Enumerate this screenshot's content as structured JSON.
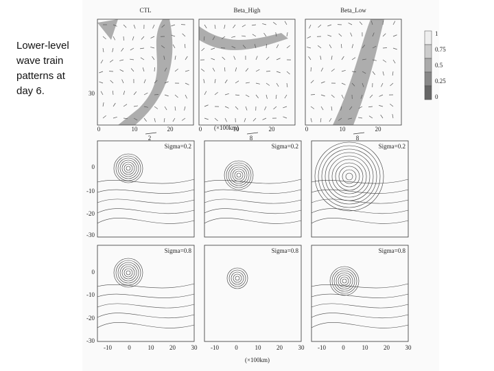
{
  "caption": "Lower-level wave train patterns at day 6.",
  "figure": {
    "top_row": {
      "titles": [
        "CTL",
        "Beta_High",
        "Beta_Low"
      ],
      "x_ticks": [
        "0",
        "10",
        "20"
      ],
      "y_ticks": [
        "30"
      ],
      "x_unit": "(×100km)",
      "vector_scale_labels": [
        "2",
        "8",
        "8"
      ]
    },
    "colorbar_labels": [
      "1",
      "0.75",
      "0.5",
      "0.25",
      "0"
    ],
    "middle_row": {
      "sigma_labels": [
        "Sigma=0.2",
        "Sigma=0.2",
        "Sigma=0.2"
      ]
    },
    "bottom_row": {
      "sigma_labels": [
        "Sigma=0.8",
        "Sigma=0.8",
        "Sigma=0.8"
      ]
    },
    "y_ticks": [
      "0",
      "-10",
      "-20",
      "-30"
    ],
    "x_ticks": [
      "-10",
      "0",
      "10",
      "20",
      "30"
    ],
    "x_unit": "(×100km)"
  }
}
